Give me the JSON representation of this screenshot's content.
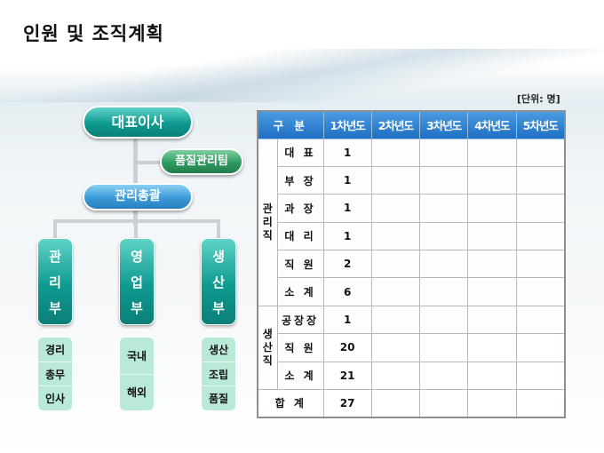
{
  "title": "인원 및 조직계획",
  "unit": "[단위: 명]",
  "org": {
    "ceo": "대표이사",
    "quality_team": "품질관리팀",
    "general_manager": "관리총괄",
    "departments": [
      {
        "name": [
          "관",
          "리",
          "부"
        ],
        "subs": [
          "경리",
          "총무",
          "인사"
        ]
      },
      {
        "name": [
          "영",
          "업",
          "부"
        ],
        "subs": [
          "국내",
          "해외"
        ]
      },
      {
        "name": [
          "생",
          "산",
          "부"
        ],
        "subs": [
          "생산",
          "조립",
          "품질"
        ]
      }
    ]
  },
  "table": {
    "headers": [
      "구  분",
      "1차년도",
      "2차년도",
      "3차년도",
      "4차년도",
      "5차년도"
    ],
    "groups": [
      {
        "name": [
          "관",
          "리",
          "직"
        ],
        "rows": [
          {
            "label": "대 표",
            "y1": "1"
          },
          {
            "label": "부 장",
            "y1": "1"
          },
          {
            "label": "과 장",
            "y1": "1"
          },
          {
            "label": "대 리",
            "y1": "1"
          },
          {
            "label": "직 원",
            "y1": "2"
          },
          {
            "label": "소 계",
            "y1": "6"
          }
        ]
      },
      {
        "name": [
          "생",
          "산",
          "직"
        ],
        "rows": [
          {
            "label": "공장장",
            "y1": "1"
          },
          {
            "label": "직 원",
            "y1": "20"
          },
          {
            "label": "소 계",
            "y1": "21"
          }
        ]
      }
    ],
    "total": {
      "label": "합 계",
      "y1": "27"
    }
  }
}
